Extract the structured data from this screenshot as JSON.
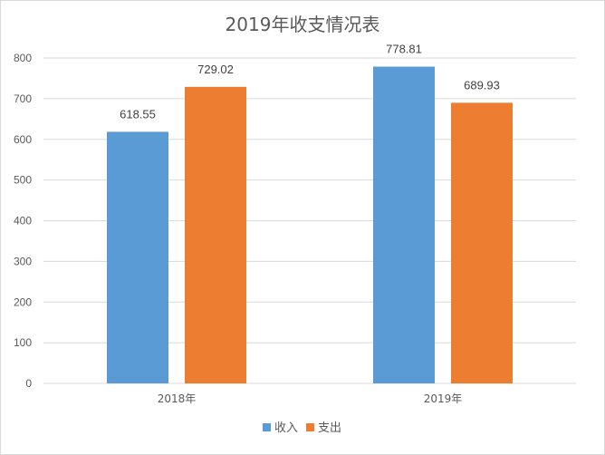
{
  "chart_data": {
    "type": "bar",
    "title": "2019年收支情况表",
    "categories": [
      "2018年",
      "2019年"
    ],
    "series": [
      {
        "name": "收入",
        "values": [
          618.55,
          778.81
        ],
        "color": "#5b9bd5"
      },
      {
        "name": "支出",
        "values": [
          729.02,
          689.93
        ],
        "color": "#ed7d31"
      }
    ],
    "ylim": [
      0,
      800
    ],
    "yticks": [
      0,
      100,
      200,
      300,
      400,
      500,
      600,
      700,
      800
    ],
    "grid": true,
    "legend": "bottom",
    "xlabel": "",
    "ylabel": ""
  }
}
